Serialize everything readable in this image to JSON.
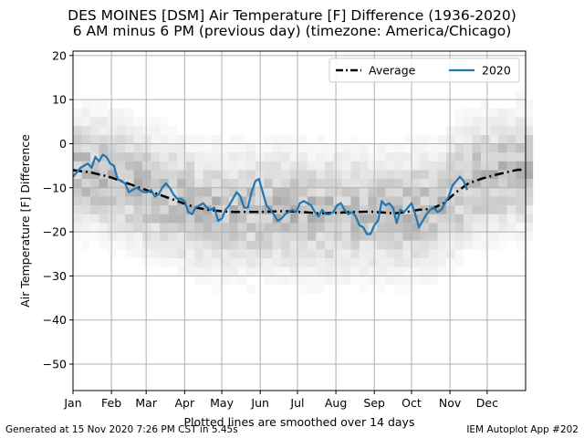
{
  "header": {
    "title_line1": "DES MOINES [DSM] Air Temperature [F] Difference (1936-2020)",
    "title_line2": "6 AM minus 6 PM (previous day) (timezone: America/Chicago)"
  },
  "footer": {
    "generated": "Generated at 15 Nov 2020 7:26 PM CST in 5.45s",
    "app": "IEM Autoplot App #202"
  },
  "chart_data": {
    "type": "line",
    "xlabel": "Plotted lines are smoothed over 14 days",
    "ylabel": "Air Temperature [F]  Difference",
    "xlim": [
      1,
      366
    ],
    "ylim": [
      -56,
      21
    ],
    "grid": true,
    "legend_position": "top-right",
    "x_ticks": [
      {
        "day": 1,
        "label": "Jan"
      },
      {
        "day": 32,
        "label": "Feb"
      },
      {
        "day": 60,
        "label": "Mar"
      },
      {
        "day": 91,
        "label": "Apr"
      },
      {
        "day": 121,
        "label": "May"
      },
      {
        "day": 152,
        "label": "Jun"
      },
      {
        "day": 182,
        "label": "Jul"
      },
      {
        "day": 213,
        "label": "Aug"
      },
      {
        "day": 244,
        "label": "Sep"
      },
      {
        "day": 274,
        "label": "Oct"
      },
      {
        "day": 305,
        "label": "Nov"
      },
      {
        "day": 335,
        "label": "Dec"
      }
    ],
    "y_ticks": [
      20,
      10,
      0,
      -10,
      -20,
      -30,
      -40,
      -50
    ],
    "series": [
      {
        "name": "Average",
        "color": "#000000",
        "style": "dash-dot",
        "x": [
          1,
          15,
          30,
          45,
          60,
          75,
          90,
          100,
          110,
          120,
          130,
          140,
          150,
          160,
          170,
          180,
          190,
          200,
          210,
          220,
          230,
          240,
          250,
          260,
          270,
          280,
          290,
          300,
          310,
          320,
          330,
          340,
          350,
          360,
          366
        ],
        "y": [
          -6,
          -6.5,
          -7.5,
          -9,
          -10.5,
          -12,
          -13.5,
          -14.5,
          -15,
          -15.3,
          -15.5,
          -15.5,
          -15.5,
          -15.4,
          -15.3,
          -15.4,
          -15.6,
          -15.8,
          -15.7,
          -15.6,
          -15.5,
          -15.4,
          -15.6,
          -15.8,
          -15.5,
          -15,
          -14.8,
          -13.5,
          -11,
          -9,
          -8,
          -7.2,
          -6.5,
          -5.9,
          -6
        ]
      },
      {
        "name": "2020",
        "color": "#1f77b4",
        "style": "solid",
        "x": [
          1,
          4,
          7,
          10,
          13,
          16,
          19,
          22,
          25,
          28,
          31,
          34,
          37,
          40,
          43,
          46,
          49,
          52,
          55,
          58,
          61,
          64,
          67,
          70,
          73,
          76,
          79,
          82,
          85,
          88,
          91,
          94,
          97,
          100,
          103,
          106,
          109,
          112,
          115,
          118,
          121,
          124,
          127,
          130,
          133,
          136,
          139,
          142,
          145,
          148,
          151,
          154,
          157,
          160,
          163,
          166,
          169,
          172,
          175,
          178,
          181,
          184,
          187,
          190,
          193,
          196,
          199,
          202,
          205,
          208,
          211,
          214,
          217,
          220,
          223,
          226,
          229,
          232,
          235,
          238,
          241,
          244,
          247,
          250,
          253,
          256,
          259,
          262,
          265,
          268,
          271,
          274,
          277,
          280,
          283,
          286,
          289,
          292,
          295,
          298,
          301,
          304,
          307,
          310,
          313,
          316,
          319
        ],
        "y": [
          -7.5,
          -6.5,
          -5.5,
          -5,
          -4.5,
          -5.5,
          -3,
          -4,
          -2.5,
          -3,
          -4.5,
          -5,
          -8,
          -8.5,
          -9,
          -11,
          -10.5,
          -10,
          -10.5,
          -11,
          -11,
          -10.5,
          -12,
          -11.5,
          -10,
          -9,
          -10,
          -11.5,
          -12.5,
          -12.5,
          -13,
          -15.5,
          -16,
          -14.5,
          -14,
          -13.5,
          -14.5,
          -15,
          -14.5,
          -17.5,
          -17,
          -15,
          -14,
          -12.5,
          -11,
          -12,
          -14.5,
          -14.5,
          -11,
          -8.5,
          -8,
          -11,
          -14,
          -15,
          -16,
          -17.5,
          -17,
          -16,
          -15.5,
          -15,
          -15.5,
          -13.5,
          -13,
          -13.5,
          -14,
          -15.5,
          -16.5,
          -15,
          -16,
          -16,
          -15.5,
          -14,
          -13.5,
          -15,
          -16,
          -15.5,
          -16.5,
          -18.5,
          -19,
          -20.5,
          -20.5,
          -18.5,
          -17.5,
          -13,
          -14,
          -13.5,
          -14.5,
          -18,
          -15,
          -15.5,
          -14.5,
          -13.5,
          -16,
          -19,
          -17.5,
          -16,
          -15,
          -14.5,
          -15.5,
          -15,
          -13.5,
          -12,
          -9.5,
          -8.5,
          -7.5,
          -8.5,
          -10.5
        ]
      }
    ],
    "density_shading": "grey histogram of yearly values, densest near average line"
  }
}
